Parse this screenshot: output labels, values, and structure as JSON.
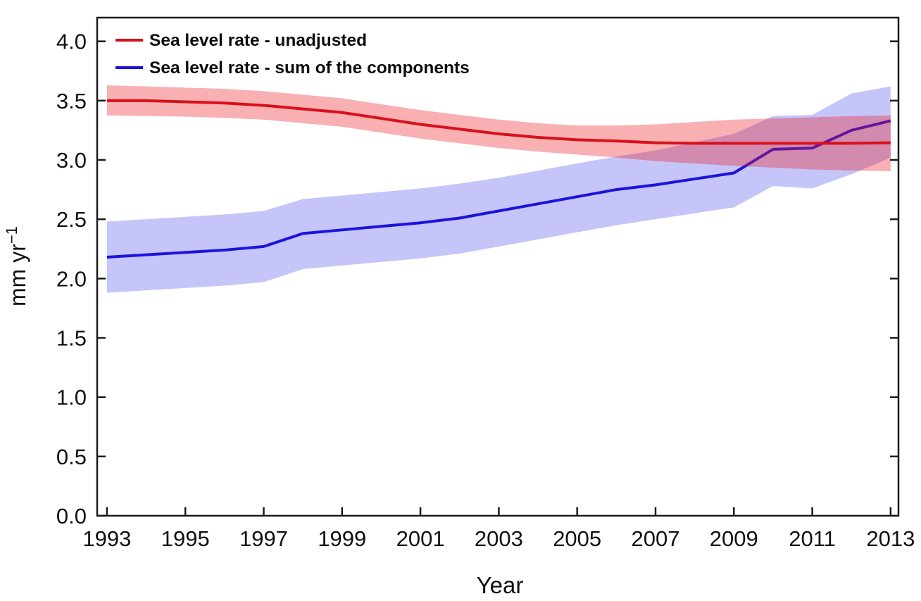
{
  "chart_data": {
    "type": "line",
    "title": "",
    "xlabel": "Year",
    "ylabel_base": "mm yr",
    "ylabel_exponent": "−1",
    "grid": false,
    "legend_position": "top-left-inside",
    "xlim": [
      1992.75,
      2013.2
    ],
    "ylim": [
      0,
      4.2
    ],
    "x_ticks": [
      "1993",
      "1995",
      "1997",
      "1999",
      "2001",
      "2003",
      "2005",
      "2007",
      "2009",
      "2011",
      "2013"
    ],
    "x_tick_values": [
      1993,
      1995,
      1997,
      1999,
      2001,
      2003,
      2005,
      2007,
      2009,
      2011,
      2013
    ],
    "y_ticks": [
      "0.0",
      "0.5",
      "1.0",
      "1.5",
      "2.0",
      "2.5",
      "3.0",
      "3.5",
      "4.0"
    ],
    "y_tick_values": [
      0,
      0.5,
      1,
      1.5,
      2,
      2.5,
      3,
      3.5,
      4
    ],
    "x": [
      1993,
      1994,
      1995,
      1996,
      1997,
      1998,
      1999,
      2000,
      2001,
      2002,
      2003,
      2004,
      2005,
      2006,
      2007,
      2008,
      2009,
      2010,
      2011,
      2012,
      2013
    ],
    "series": [
      {
        "name": "Sea level rate - unadjusted",
        "color": "#d8101c",
        "band_color": "rgba(237,28,36,0.35)",
        "values": [
          3.5,
          3.5,
          3.49,
          3.48,
          3.46,
          3.43,
          3.4,
          3.35,
          3.3,
          3.26,
          3.22,
          3.19,
          3.17,
          3.16,
          3.145,
          3.14,
          3.14,
          3.14,
          3.14,
          3.14,
          3.145
        ],
        "upper": [
          3.63,
          3.62,
          3.61,
          3.6,
          3.58,
          3.55,
          3.52,
          3.47,
          3.42,
          3.38,
          3.34,
          3.31,
          3.29,
          3.29,
          3.3,
          3.32,
          3.34,
          3.35,
          3.36,
          3.37,
          3.375
        ],
        "lower": [
          3.375,
          3.37,
          3.365,
          3.355,
          3.34,
          3.31,
          3.28,
          3.23,
          3.18,
          3.14,
          3.1,
          3.07,
          3.045,
          3.02,
          2.99,
          2.97,
          2.95,
          2.935,
          2.92,
          2.91,
          2.905
        ]
      },
      {
        "name": "Sea level rate - sum of the components",
        "color": "#1c13dd",
        "band_color": "rgba(45,45,232,0.28)",
        "values": [
          2.18,
          2.2,
          2.22,
          2.24,
          2.27,
          2.38,
          2.41,
          2.44,
          2.47,
          2.51,
          2.57,
          2.63,
          2.69,
          2.75,
          2.79,
          2.84,
          2.89,
          3.09,
          3.1,
          3.25,
          3.33
        ],
        "upper": [
          2.48,
          2.5,
          2.52,
          2.54,
          2.57,
          2.67,
          2.7,
          2.73,
          2.76,
          2.8,
          2.85,
          2.91,
          2.97,
          3.03,
          3.08,
          3.15,
          3.22,
          3.37,
          3.38,
          3.56,
          3.62
        ],
        "lower": [
          1.88,
          1.9,
          1.92,
          1.94,
          1.97,
          2.08,
          2.11,
          2.14,
          2.17,
          2.21,
          2.27,
          2.33,
          2.39,
          2.45,
          2.5,
          2.55,
          2.6,
          2.78,
          2.76,
          2.88,
          3.02
        ]
      }
    ],
    "axis_color": "#1a1a1a",
    "text_color": "#111111"
  }
}
